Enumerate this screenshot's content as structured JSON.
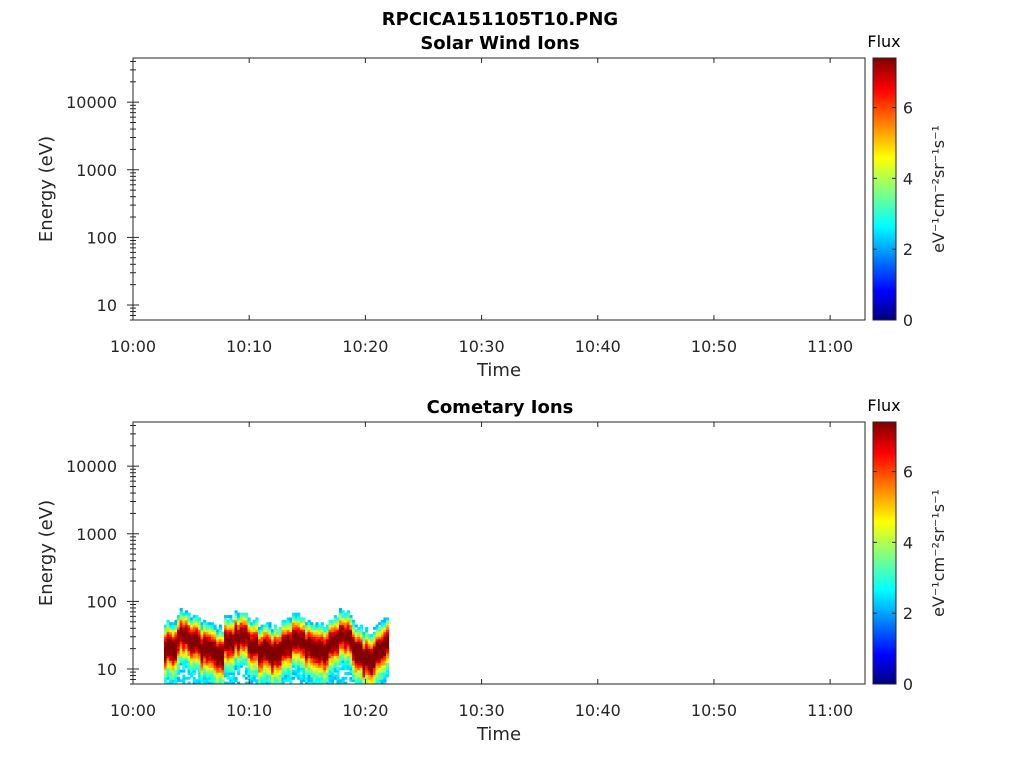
{
  "figure_title": "RPCICA151105T10.PNG",
  "chart_data": [
    {
      "type": "heatmap",
      "title": "Solar Wind Ions",
      "xlabel": "Time",
      "ylabel": "Energy (eV)",
      "x_ticks": [
        "10:00",
        "10:10",
        "10:20",
        "10:30",
        "10:40",
        "10:50",
        "11:00"
      ],
      "y_ticks": [
        "10",
        "100",
        "1000",
        "10000"
      ],
      "y_scale": "log",
      "xlim": [
        "10:00",
        "11:03"
      ],
      "ylim": [
        6,
        45000
      ],
      "colorbar": {
        "title": "Flux",
        "label": "eV⁻¹cm⁻²sr⁻¹s⁻¹",
        "ticks": [
          "0",
          "2",
          "4",
          "6"
        ],
        "range": [
          0,
          7.4
        ],
        "colormap": "jet"
      },
      "data": {
        "time_range": null,
        "energy_range": null,
        "description_values": []
      }
    },
    {
      "type": "heatmap",
      "title": "Cometary Ions",
      "xlabel": "Time",
      "ylabel": "Energy (eV)",
      "x_ticks": [
        "10:00",
        "10:10",
        "10:20",
        "10:30",
        "10:40",
        "10:50",
        "11:00"
      ],
      "y_ticks": [
        "10",
        "100",
        "1000",
        "10000"
      ],
      "y_scale": "log",
      "xlim": [
        "10:00",
        "11:03"
      ],
      "ylim": [
        6,
        45000
      ],
      "colorbar": {
        "title": "Flux",
        "label": "eV⁻¹cm⁻²sr⁻¹s⁻¹",
        "ticks": [
          "0",
          "2",
          "4",
          "6"
        ],
        "range": [
          0,
          7.4
        ],
        "colormap": "jet"
      },
      "data": {
        "time_start": "10:02:40",
        "time_end": "10:22:00",
        "energy_min": 6,
        "energy_max": 80,
        "peak_energy": 25,
        "flux_peak": 6.8,
        "peak_energy_by_minute": [
          22,
          30,
          28,
          20,
          18,
          27,
          32,
          24,
          19,
          17,
          25,
          30,
          22,
          18,
          26,
          30,
          20,
          15,
          22,
          28
        ]
      }
    }
  ]
}
